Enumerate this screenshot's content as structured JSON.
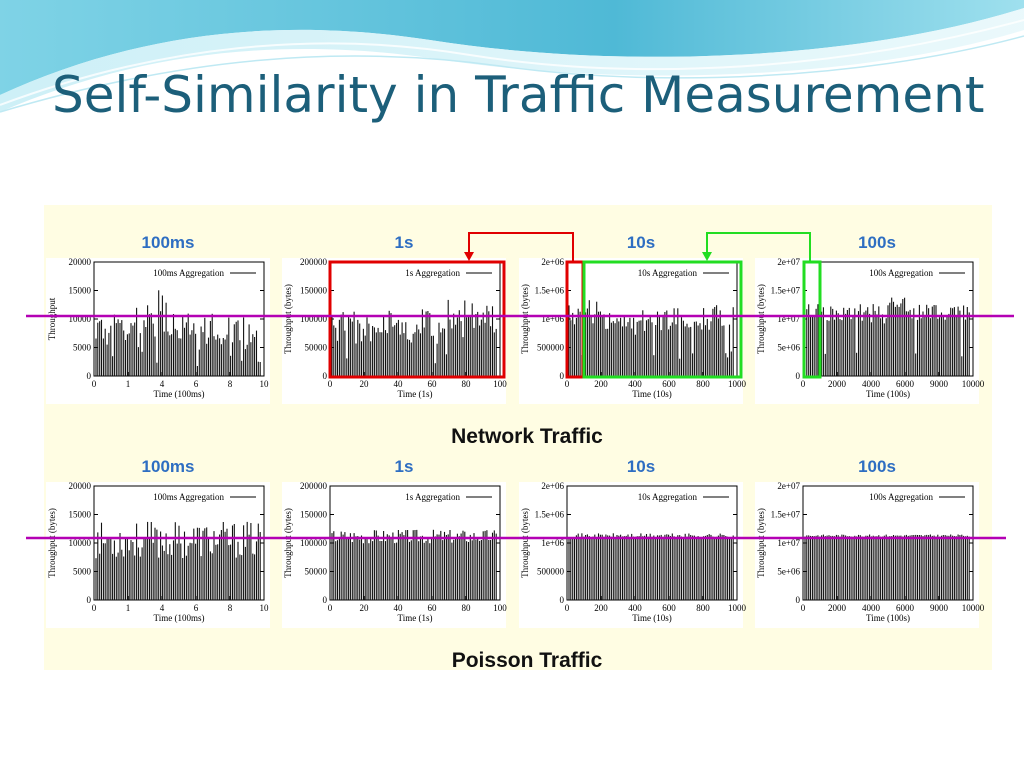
{
  "slide": {
    "title": "Self-Similarity in Traffic Measurement"
  },
  "colors": {
    "title": "#1c5f7a",
    "scale_label": "#2e6ec2",
    "bar": "#111111",
    "panel": "#fffde3",
    "reference_line": "#b400b4",
    "zoom_1s_box": "#e00000",
    "zoom_10s_box": "#22dd22"
  },
  "groups": [
    {
      "label": "Network Traffic"
    },
    {
      "label": "Poisson Traffic"
    }
  ],
  "chart_data": [
    {
      "type": "bar",
      "group": "Network Traffic",
      "scale_label": "100ms",
      "legend": "100ms Aggregation",
      "xlabel": "Time (100ms)",
      "ylabel": "Throughput",
      "y_ticks": [
        "20000",
        "15000",
        "10000",
        "5000",
        "0"
      ],
      "x_ticks": [
        "0",
        "1",
        "4",
        "6",
        "8",
        "10"
      ],
      "ylim": [
        0,
        20000
      ],
      "baseline": 7500,
      "spread": 6000,
      "bursty": true,
      "seed": 11
    },
    {
      "type": "bar",
      "group": "Network Traffic",
      "scale_label": "1s",
      "legend": "1s Aggregation",
      "xlabel": "Time (1s)",
      "ylabel": "Throughput (bytes)",
      "y_ticks": [
        "200000",
        "150000",
        "100000",
        "50000",
        "0"
      ],
      "x_ticks": [
        "0",
        "20",
        "40",
        "60",
        "80",
        "100"
      ],
      "ylim": [
        0,
        200000
      ],
      "baseline": 85000,
      "spread": 55000,
      "bursty": true,
      "seed": 23
    },
    {
      "type": "bar",
      "group": "Network Traffic",
      "scale_label": "10s",
      "legend": "10s Aggregation",
      "xlabel": "Time (10s)",
      "ylabel": "Throughput (bytes)",
      "y_ticks": [
        "2e+06",
        "1.5e+06",
        "1e+06",
        "500000",
        "0"
      ],
      "x_ticks": [
        "0",
        "200",
        "400",
        "600",
        "800",
        "1000"
      ],
      "ylim": [
        0,
        2000000
      ],
      "baseline": 1000000,
      "spread": 450000,
      "bursty": true,
      "seed": 37
    },
    {
      "type": "bar",
      "group": "Network Traffic",
      "scale_label": "100s",
      "legend": "100s Aggregation",
      "xlabel": "Time (100s)",
      "ylabel": "Throughput (bytes)",
      "y_ticks": [
        "2e+07",
        "1.5e+07",
        "1e+07",
        "5e+06",
        "0"
      ],
      "x_ticks": [
        "0",
        "2000",
        "4000",
        "6000",
        "9000",
        "10000"
      ],
      "ylim": [
        0,
        20000000
      ],
      "baseline": 11000000,
      "spread": 3500000,
      "bursty": true,
      "seed": 41
    },
    {
      "type": "bar",
      "group": "Poisson Traffic",
      "scale_label": "100ms",
      "legend": "100ms Aggregation",
      "xlabel": "Time (100ms)",
      "ylabel": "Throughput (bytes)",
      "y_ticks": [
        "20000",
        "15000",
        "10000",
        "5000",
        "0"
      ],
      "x_ticks": [
        "0",
        "1",
        "4",
        "6",
        "8",
        "10"
      ],
      "ylim": [
        0,
        20000
      ],
      "baseline": 10500,
      "spread": 6500,
      "bursty": false,
      "seed": 53
    },
    {
      "type": "bar",
      "group": "Poisson Traffic",
      "scale_label": "1s",
      "legend": "1s Aggregation",
      "xlabel": "Time (1s)",
      "ylabel": "Throughput (bytes)",
      "y_ticks": [
        "200000",
        "150000",
        "100000",
        "50000",
        "0"
      ],
      "x_ticks": [
        "0",
        "20",
        "40",
        "60",
        "80",
        "100"
      ],
      "ylim": [
        0,
        200000
      ],
      "baseline": 112000,
      "spread": 25000,
      "bursty": false,
      "seed": 67
    },
    {
      "type": "bar",
      "group": "Poisson Traffic",
      "scale_label": "10s",
      "legend": "10s Aggregation",
      "xlabel": "Time (10s)",
      "ylabel": "Throughput (bytes)",
      "y_ticks": [
        "2e+06",
        "1.5e+06",
        "1e+06",
        "500000",
        "0"
      ],
      "x_ticks": [
        "0",
        "200",
        "400",
        "600",
        "800",
        "1000"
      ],
      "ylim": [
        0,
        2000000
      ],
      "baseline": 1130000,
      "spread": 80000,
      "bursty": false,
      "seed": 71
    },
    {
      "type": "bar",
      "group": "Poisson Traffic",
      "scale_label": "100s",
      "legend": "100s Aggregation",
      "xlabel": "Time (100s)",
      "ylabel": "Throughput (bytes)",
      "y_ticks": [
        "2e+07",
        "1.5e+07",
        "1e+07",
        "5e+06",
        "0"
      ],
      "x_ticks": [
        "0",
        "2000",
        "4000",
        "6000",
        "9000",
        "10000"
      ],
      "ylim": [
        0,
        20000000
      ],
      "baseline": 11300000,
      "spread": 400000,
      "bursty": false,
      "seed": 83
    }
  ]
}
